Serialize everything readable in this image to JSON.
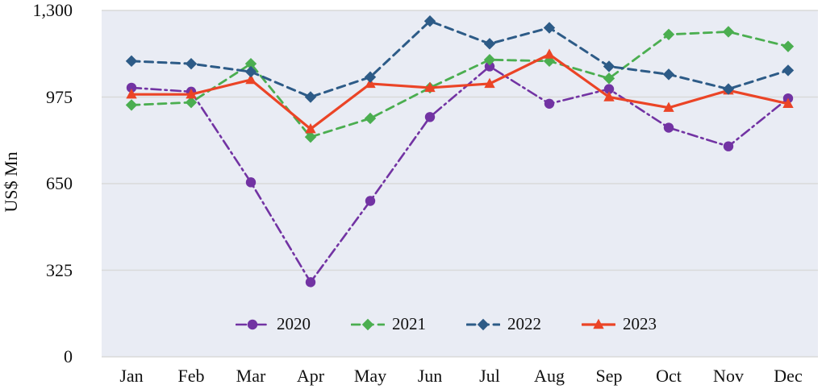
{
  "chart_data": {
    "type": "line",
    "title": "",
    "ylabel": "US$ Mn",
    "xlabel": "",
    "categories": [
      "Jan",
      "Feb",
      "Mar",
      "Apr",
      "May",
      "Jun",
      "Jul",
      "Aug",
      "Sep",
      "Oct",
      "Nov",
      "Dec"
    ],
    "ylim": [
      0,
      1300
    ],
    "yticks": [
      {
        "value": 0,
        "label": "0"
      },
      {
        "value": 325,
        "label": "325"
      },
      {
        "value": 650,
        "label": "650"
      },
      {
        "value": 975,
        "label": "975"
      },
      {
        "value": 1300,
        "label": "1,300"
      }
    ],
    "grid": "horizontal",
    "legend_position": "bottom-center-inside",
    "plot_bg_color": "#E9ECF4",
    "gridline_color": "#D9D9D9",
    "series": [
      {
        "name": "2020",
        "color": "#7233A3",
        "line_style": "dash-dot",
        "marker": "circle",
        "values": [
          1010,
          995,
          655,
          280,
          585,
          900,
          1090,
          950,
          1005,
          860,
          790,
          970
        ]
      },
      {
        "name": "2021",
        "color": "#4BAE50",
        "line_style": "dashed",
        "marker": "diamond",
        "values": [
          945,
          955,
          1100,
          825,
          895,
          1010,
          1115,
          1110,
          1045,
          1210,
          1220,
          1165
        ]
      },
      {
        "name": "2022",
        "color": "#2D5B87",
        "line_style": "dashed",
        "marker": "diamond",
        "values": [
          1110,
          1100,
          1070,
          975,
          1050,
          1260,
          1175,
          1235,
          1090,
          1060,
          1005,
          1075
        ]
      },
      {
        "name": "2023",
        "color": "#EB4426",
        "line_style": "solid",
        "marker": "triangle",
        "values": [
          985,
          985,
          1040,
          855,
          1025,
          1010,
          1025,
          1135,
          975,
          935,
          1000,
          950
        ]
      }
    ]
  }
}
